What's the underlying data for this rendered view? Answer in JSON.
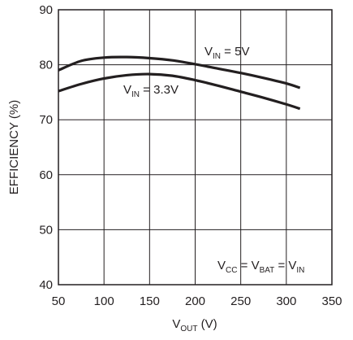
{
  "chart_data": {
    "type": "line",
    "title": "",
    "xlabel": {
      "main": "V",
      "sub": "OUT",
      "unit": " (V)"
    },
    "ylabel": "EFFICIENCY (%)",
    "xlim": [
      50,
      350
    ],
    "ylim": [
      40,
      90
    ],
    "x_ticks": [
      "50",
      "100",
      "150",
      "200",
      "250",
      "300",
      "350"
    ],
    "y_ticks": [
      "40",
      "50",
      "60",
      "70",
      "80",
      "90"
    ],
    "grid": true,
    "series": [
      {
        "label": {
          "main": "V",
          "sub": "IN",
          "rest": " = 5V"
        },
        "x": [
          50,
          75,
          100,
          125,
          150,
          175,
          200,
          225,
          250,
          275,
          300,
          315
        ],
        "y": [
          79,
          80.7,
          81.3,
          81.4,
          81.2,
          80.8,
          80.1,
          79.3,
          78.5,
          77.6,
          76.6,
          75.8
        ]
      },
      {
        "label": {
          "main": "V",
          "sub": "IN",
          "rest": " = 3.3V"
        },
        "x": [
          50,
          75,
          100,
          125,
          150,
          175,
          200,
          225,
          250,
          275,
          300,
          315
        ],
        "y": [
          75.2,
          76.5,
          77.5,
          78.1,
          78.3,
          78,
          77.2,
          76.2,
          75.1,
          74,
          72.8,
          72
        ]
      }
    ],
    "condition_note": {
      "parts": [
        {
          "main": "V",
          "sub": "CC"
        },
        {
          "main": " = V",
          "sub": "BAT"
        },
        {
          "main": " = V",
          "sub": "IN"
        }
      ]
    }
  }
}
